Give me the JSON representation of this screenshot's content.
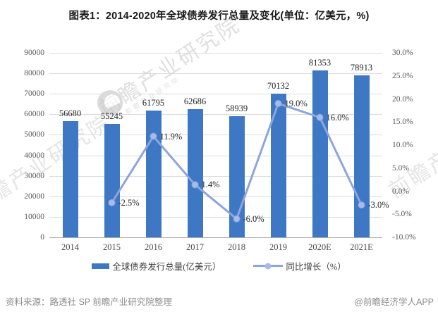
{
  "title": "图表1：2014-2020年全球债券发行总量及变化(单位：亿美元，%)",
  "footer": {
    "source": "资料来源：路透社 SP 前瞻产业研究院整理",
    "brand": "@前瞻经济学人APP"
  },
  "watermark": {
    "text": "前瞻产业研究院",
    "logo_name": "qianzhan-logo"
  },
  "colors": {
    "bar": "#3E78C5",
    "line": "#8CA5DC",
    "marker_fill": "#A9BAE5",
    "grid": "#DBDBDB",
    "axis_line": "#ABABAB",
    "axis_text": "#595959",
    "value_text": "#262626",
    "title_text": "#1A1A1A",
    "footer_text": "#8C8C8C",
    "watermark": "#C6C6C6"
  },
  "legend": {
    "items": [
      {
        "label": "全球债券发行总量(亿美元）",
        "type": "bar"
      },
      {
        "label": "同比增长（%）",
        "type": "line"
      }
    ]
  },
  "chart_data": {
    "type": "bar+line",
    "categories": [
      "2014",
      "2015",
      "2016",
      "2017",
      "2018",
      "2019",
      "2020E",
      "2021E"
    ],
    "series": [
      {
        "name": "全球债券发行总量(亿美元）",
        "type": "bar",
        "axis": "left",
        "values": [
          56680,
          55245,
          61795,
          62686,
          58939,
          70132,
          81353,
          78913
        ]
      },
      {
        "name": "同比增长（%）",
        "type": "line",
        "axis": "right",
        "values": [
          null,
          -2.5,
          11.9,
          1.4,
          -6.0,
          19.0,
          16.0,
          -3.0
        ]
      }
    ],
    "left_axis": {
      "min": 0,
      "max": 90000,
      "step": 10000
    },
    "right_axis": {
      "min": -10,
      "max": 30,
      "step": 5,
      "suffix": "%",
      "decimals": 1
    },
    "grid": "horizontal",
    "legend_position": "bottom"
  }
}
